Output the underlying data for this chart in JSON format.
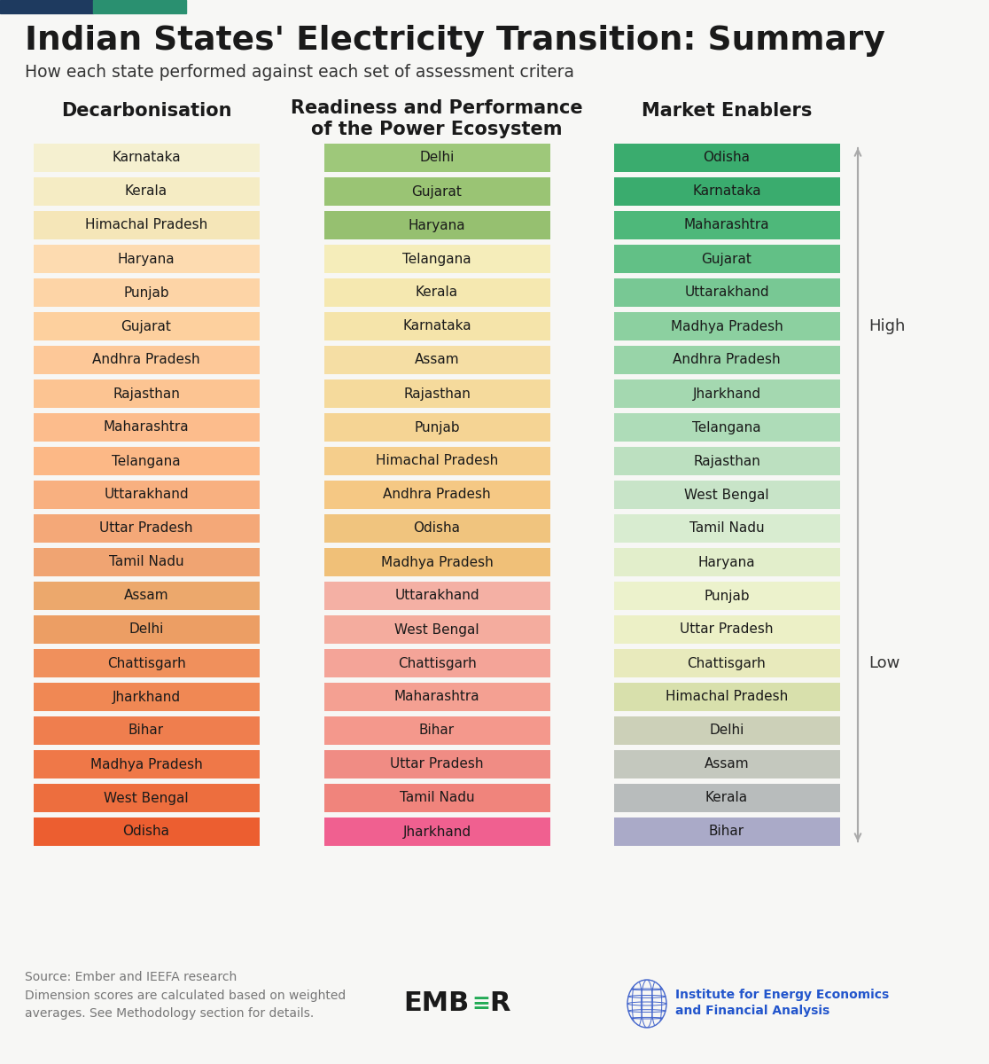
{
  "title": "Indian States' Electricity Transition: Summary",
  "subtitle": "How each state performed against each set of assessment critera",
  "background_color": "#f7f7f5",
  "col1_header": "Decarbonisation",
  "col2_header": "Readiness and Performance\nof the Power Ecosystem",
  "col3_header": "Market Enablers",
  "col1_states": [
    "Karnataka",
    "Kerala",
    "Himachal Pradesh",
    "Haryana",
    "Punjab",
    "Gujarat",
    "Andhra Pradesh",
    "Rajasthan",
    "Maharashtra",
    "Telangana",
    "Uttarakhand",
    "Uttar Pradesh",
    "Tamil Nadu",
    "Assam",
    "Delhi",
    "Chattisgarh",
    "Jharkhand",
    "Bihar",
    "Madhya Pradesh",
    "West Bengal",
    "Odisha"
  ],
  "col2_states": [
    "Delhi",
    "Gujarat",
    "Haryana",
    "Telangana",
    "Kerala",
    "Karnataka",
    "Assam",
    "Rajasthan",
    "Punjab",
    "Himachal Pradesh",
    "Andhra Pradesh",
    "Odisha",
    "Madhya Pradesh",
    "Uttarakhand",
    "West Bengal",
    "Chattisgarh",
    "Maharashtra",
    "Bihar",
    "Uttar Pradesh",
    "Tamil Nadu",
    "Jharkhand"
  ],
  "col3_states": [
    "Odisha",
    "Karnataka",
    "Maharashtra",
    "Gujarat",
    "Uttarakhand",
    "Madhya Pradesh",
    "Andhra Pradesh",
    "Jharkhand",
    "Telangana",
    "Rajasthan",
    "West Bengal",
    "Tamil Nadu",
    "Haryana",
    "Punjab",
    "Uttar Pradesh",
    "Chattisgarh",
    "Himachal Pradesh",
    "Delhi",
    "Assam",
    "Kerala",
    "Bihar"
  ],
  "col1_colors": [
    "#f5f0d0",
    "#f5ecc4",
    "#f5e6b8",
    "#fddbb0",
    "#fdd4a6",
    "#fdd09e",
    "#fdc898",
    "#fcc492",
    "#fcbc8c",
    "#fcb886",
    "#f8b080",
    "#f4a878",
    "#f0a472",
    "#eca86c",
    "#ec9e64",
    "#f0905c",
    "#f08854",
    "#ef7e4e",
    "#ef7848",
    "#ed6e3e",
    "#ec5e30"
  ],
  "col2_colors": [
    "#9ec87a",
    "#9ac474",
    "#96c070",
    "#f5edba",
    "#f5e8b0",
    "#f5e4aa",
    "#f5dea4",
    "#f5da9c",
    "#f5d494",
    "#f5ce8c",
    "#f5c884",
    "#f0c47e",
    "#f0c078",
    "#f4b0a4",
    "#f4ac9e",
    "#f4a498",
    "#f4a092",
    "#f4988c",
    "#f08c84",
    "#f0847c",
    "#f06090"
  ],
  "col3_colors": [
    "#3aac6e",
    "#3aac6e",
    "#4eb87a",
    "#62c086",
    "#78c894",
    "#8cd0a0",
    "#98d4a8",
    "#a4d8b0",
    "#aedcb8",
    "#bce0c0",
    "#c8e4c8",
    "#d8ecd0",
    "#e2eecb",
    "#ecf2cc",
    "#ecf0c6",
    "#e8eabc",
    "#d8e0ac",
    "#ccd0b8",
    "#c4c8be",
    "#b8bcbc",
    "#aaaac8"
  ],
  "arrow_high": "High",
  "arrow_low": "Low",
  "source_text": "Source: Ember and IEEFA research\nDimension scores are calculated based on weighted\naverages. See Methodology section for details.",
  "top_bar_left_color": "#1e3a5f",
  "top_bar_right_color": "#2a9070"
}
